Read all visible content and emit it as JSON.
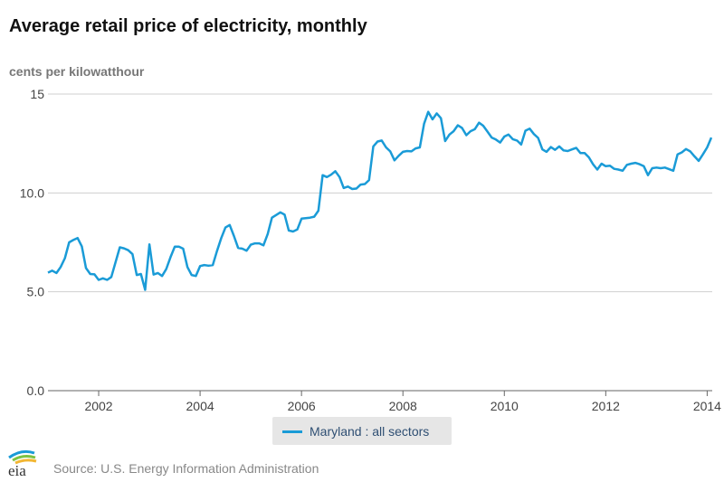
{
  "header": {
    "title": "Average retail price of electricity, monthly",
    "units": "cents per kilowatthour"
  },
  "legend": {
    "label": "Maryland : all sectors",
    "color": "#1a9bd7"
  },
  "footer": {
    "logo_text": "eia",
    "source": "Source: U.S. Energy Information Administration"
  },
  "chart_data": {
    "type": "line",
    "title": "Average retail price of electricity, monthly",
    "ylabel": "cents per kilowatthour",
    "xlabel": "",
    "ylim": [
      0,
      15
    ],
    "xlim": [
      2001.0,
      2014.1
    ],
    "yticks": [
      0,
      5,
      10,
      15
    ],
    "ytick_labels": [
      "0.0",
      "5.0",
      "10.0",
      "15"
    ],
    "xticks": [
      2002,
      2004,
      2006,
      2008,
      2010,
      2012,
      2014
    ],
    "xtick_labels": [
      "2002",
      "2004",
      "2006",
      "2008",
      "2010",
      "2012",
      "2014"
    ],
    "grid": true,
    "legend_position": "bottom-center",
    "series": [
      {
        "name": "Maryland : all sectors",
        "x": [
          2001.0,
          2001.083,
          2001.167,
          2001.25,
          2001.333,
          2001.417,
          2001.5,
          2001.583,
          2001.667,
          2001.75,
          2001.833,
          2001.917,
          2002.0,
          2002.083,
          2002.167,
          2002.25,
          2002.333,
          2002.417,
          2002.5,
          2002.583,
          2002.667,
          2002.75,
          2002.833,
          2002.917,
          2003.0,
          2003.083,
          2003.167,
          2003.25,
          2003.333,
          2003.417,
          2003.5,
          2003.583,
          2003.667,
          2003.75,
          2003.833,
          2003.917,
          2004.0,
          2004.083,
          2004.167,
          2004.25,
          2004.333,
          2004.417,
          2004.5,
          2004.583,
          2004.667,
          2004.75,
          2004.833,
          2004.917,
          2005.0,
          2005.083,
          2005.167,
          2005.25,
          2005.333,
          2005.417,
          2005.5,
          2005.583,
          2005.667,
          2005.75,
          2005.833,
          2005.917,
          2006.0,
          2006.083,
          2006.167,
          2006.25,
          2006.333,
          2006.417,
          2006.5,
          2006.583,
          2006.667,
          2006.75,
          2006.833,
          2006.917,
          2007.0,
          2007.083,
          2007.167,
          2007.25,
          2007.333,
          2007.417,
          2007.5,
          2007.583,
          2007.667,
          2007.75,
          2007.833,
          2007.917,
          2008.0,
          2008.083,
          2008.167,
          2008.25,
          2008.333,
          2008.417,
          2008.5,
          2008.583,
          2008.667,
          2008.75,
          2008.833,
          2008.917,
          2009.0,
          2009.083,
          2009.167,
          2009.25,
          2009.333,
          2009.417,
          2009.5,
          2009.583,
          2009.667,
          2009.75,
          2009.833,
          2009.917,
          2010.0,
          2010.083,
          2010.167,
          2010.25,
          2010.333,
          2010.417,
          2010.5,
          2010.583,
          2010.667,
          2010.75,
          2010.833,
          2010.917,
          2011.0,
          2011.083,
          2011.167,
          2011.25,
          2011.333,
          2011.417,
          2011.5,
          2011.583,
          2011.667,
          2011.75,
          2011.833,
          2011.917,
          2012.0,
          2012.083,
          2012.167,
          2012.25,
          2012.333,
          2012.417,
          2012.5,
          2012.583,
          2012.667,
          2012.75,
          2012.833,
          2012.917,
          2013.0,
          2013.083,
          2013.167,
          2013.25,
          2013.333,
          2013.417,
          2013.5,
          2013.583,
          2013.667,
          2013.75,
          2013.833,
          2013.917,
          2014.0,
          2014.083
        ],
        "values": [
          5.97,
          6.07,
          5.95,
          6.25,
          6.7,
          7.5,
          7.62,
          7.72,
          7.3,
          6.2,
          5.9,
          5.88,
          5.6,
          5.68,
          5.6,
          5.75,
          6.5,
          7.25,
          7.2,
          7.1,
          6.9,
          5.85,
          5.9,
          5.1,
          7.4,
          5.87,
          5.95,
          5.8,
          6.15,
          6.75,
          7.28,
          7.28,
          7.18,
          6.25,
          5.85,
          5.8,
          6.3,
          6.35,
          6.32,
          6.35,
          7.05,
          7.72,
          8.25,
          8.38,
          7.82,
          7.22,
          7.18,
          7.08,
          7.38,
          7.45,
          7.45,
          7.35,
          7.92,
          8.75,
          8.88,
          9.02,
          8.9,
          8.1,
          8.05,
          8.15,
          8.7,
          8.72,
          8.75,
          8.8,
          9.1,
          10.9,
          10.8,
          10.92,
          11.1,
          10.8,
          10.25,
          10.32,
          10.2,
          10.22,
          10.42,
          10.45,
          10.65,
          12.35,
          12.6,
          12.65,
          12.3,
          12.1,
          11.65,
          11.88,
          12.08,
          12.12,
          12.1,
          12.25,
          12.3,
          13.5,
          14.1,
          13.72,
          14.02,
          13.78,
          12.62,
          12.95,
          13.12,
          13.42,
          13.28,
          12.92,
          13.12,
          13.22,
          13.55,
          13.4,
          13.1,
          12.8,
          12.7,
          12.55,
          12.85,
          12.95,
          12.72,
          12.65,
          12.45,
          13.15,
          13.25,
          12.98,
          12.78,
          12.2,
          12.08,
          12.32,
          12.18,
          12.35,
          12.15,
          12.12,
          12.2,
          12.28,
          12.02,
          12.02,
          11.8,
          11.45,
          11.18,
          11.48,
          11.35,
          11.38,
          11.22,
          11.18,
          11.12,
          11.42,
          11.48,
          11.52,
          11.45,
          11.35,
          10.9,
          11.25,
          11.28,
          11.25,
          11.28,
          11.2,
          11.12,
          11.95,
          12.05,
          12.22,
          12.1,
          11.85,
          11.62,
          11.95,
          12.3,
          12.8
        ]
      }
    ]
  }
}
